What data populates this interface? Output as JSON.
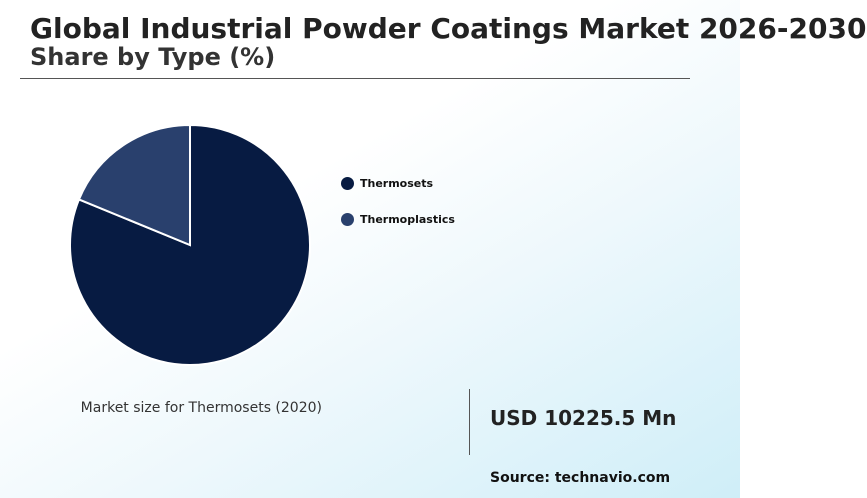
{
  "chart_data": {
    "type": "pie",
    "title": "Global Industrial Powder Coatings Market 2026-2030",
    "subtitle": "Share by Type (%)",
    "categories": [
      "Thermosets",
      "Thermoplastics"
    ],
    "values": [
      81.2,
      18.8
    ],
    "colors": [
      "#071b42",
      "#29406d"
    ],
    "legend_position": "right"
  },
  "highlight": {
    "label": "Market size for Thermosets (2020)",
    "value": "USD 10225.5 Mn"
  },
  "source": "Source: technavio.com"
}
